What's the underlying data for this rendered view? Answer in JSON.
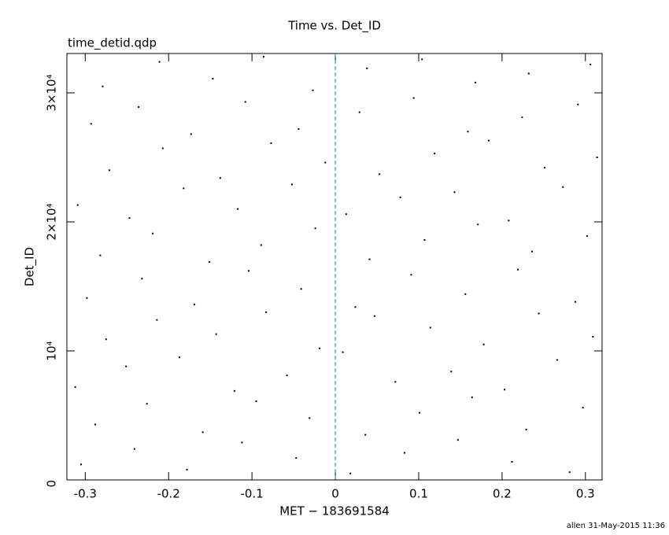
{
  "chart_data": {
    "type": "scatter",
    "title": "Time vs. Det_ID",
    "subtitle": "time_detid.qdp",
    "xlabel": "MET − 183691584",
    "ylabel": "Det_ID",
    "footer": "allen 31-May-2015 11:36",
    "xlim": [
      -0.322,
      0.32
    ],
    "ylim": [
      0,
      33050
    ],
    "xticks": [
      -0.3,
      -0.2,
      -0.1,
      0,
      0.1,
      0.2,
      0.3
    ],
    "yticks": [
      0,
      {
        "value": 10000,
        "label": "10⁴"
      },
      {
        "value": 20000,
        "label": "2×10⁴"
      },
      {
        "value": 30000,
        "label": "3×10⁴"
      }
    ],
    "vline": {
      "x": 0,
      "color": "#2a9d9d"
    },
    "series": [
      {
        "color": "#000000",
        "x": [
          -0.305,
          -0.241,
          -0.178,
          -0.112,
          -0.047,
          0.018,
          0.083,
          0.147,
          0.212,
          0.281,
          -0.288,
          -0.226,
          -0.159,
          -0.095,
          -0.031,
          0.036,
          0.101,
          0.164,
          0.229,
          0.297,
          -0.312,
          -0.251,
          -0.187,
          -0.121,
          -0.058,
          0.009,
          0.072,
          0.139,
          0.203,
          0.266,
          -0.275,
          -0.214,
          -0.143,
          -0.083,
          -0.019,
          0.047,
          0.114,
          0.178,
          0.244,
          0.309,
          -0.298,
          -0.232,
          -0.169,
          -0.104,
          -0.041,
          0.024,
          0.091,
          0.156,
          0.219,
          0.288,
          -0.282,
          -0.219,
          -0.151,
          -0.089,
          -0.024,
          0.041,
          0.107,
          0.171,
          0.236,
          0.302,
          -0.309,
          -0.247,
          -0.182,
          -0.117,
          -0.052,
          0.013,
          0.078,
          0.143,
          0.208,
          0.273,
          -0.271,
          -0.207,
          -0.138,
          -0.077,
          -0.012,
          0.053,
          0.119,
          0.184,
          0.251,
          0.314,
          -0.293,
          -0.236,
          -0.173,
          -0.108,
          -0.044,
          0.029,
          0.094,
          0.159,
          0.224,
          0.291,
          -0.279,
          -0.211,
          -0.147,
          -0.086,
          -0.027,
          0.038,
          0.104,
          0.168,
          0.232,
          0.306
        ],
        "values": [
          1200,
          2400,
          800,
          2900,
          1700,
          500,
          2100,
          3100,
          1400,
          600,
          4300,
          5900,
          3700,
          6100,
          4800,
          3500,
          5200,
          6400,
          3900,
          5600,
          7200,
          8800,
          9500,
          6900,
          8100,
          9900,
          7600,
          8400,
          7000,
          9300,
          10900,
          12400,
          11300,
          13000,
          10200,
          12700,
          11800,
          10500,
          12900,
          11100,
          14100,
          15600,
          13600,
          16200,
          14800,
          13400,
          15900,
          14400,
          16300,
          13800,
          17400,
          19100,
          16900,
          18200,
          19500,
          17100,
          18600,
          19800,
          17700,
          18900,
          21300,
          20300,
          22600,
          21000,
          22900,
          20600,
          21900,
          22300,
          20100,
          22700,
          24000,
          25700,
          23400,
          26100,
          24600,
          23700,
          25300,
          26300,
          24200,
          25000,
          27600,
          28900,
          26800,
          29300,
          27200,
          28500,
          29600,
          27000,
          28100,
          29100,
          30500,
          32400,
          31100,
          32800,
          30200,
          31900,
          32600,
          30800,
          31500,
          32200
        ]
      }
    ]
  }
}
